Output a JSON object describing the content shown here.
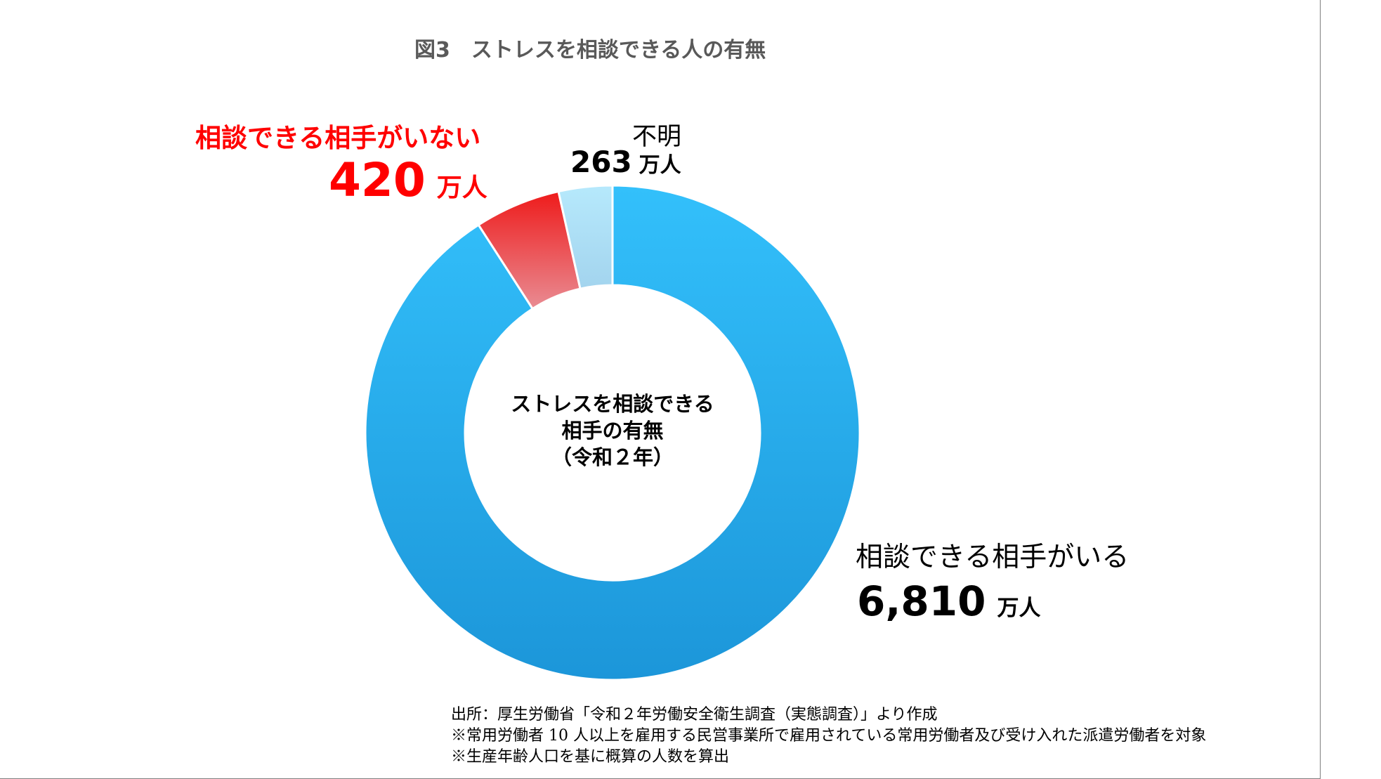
{
  "chart_data": {
    "type": "pie",
    "style": "donut",
    "title": "図3　ストレスを相談できる人の有無",
    "center_text": [
      "ストレスを相談できる",
      "相手の有無",
      "（令和２年）"
    ],
    "unit": "万人",
    "slices": [
      {
        "label": "相談できる相手がいる",
        "value": 6810,
        "value_text": "6,810",
        "color_top": "#33c0fb",
        "color_bottom": "#1c96d9"
      },
      {
        "label": "相談できる相手がいない",
        "value": 420,
        "value_text": "420",
        "color_top": "#ee1b1b",
        "color_bottom": "#e98c93"
      },
      {
        "label": "不明",
        "value": 263,
        "value_text": "263",
        "color_top": "#b6e9fc",
        "color_bottom": "#a3d4ee"
      }
    ]
  },
  "notes": [
    "出所：厚生労働省「令和２年労働安全衛生調査（実態調査）」より作成",
    "※常用労働者 10 人以上を雇用する民営事業所で雇用されている常用労働者及び受け入れた派遣労働者を対象",
    "※生産年齢人口を基に概算の人数を算出"
  ]
}
